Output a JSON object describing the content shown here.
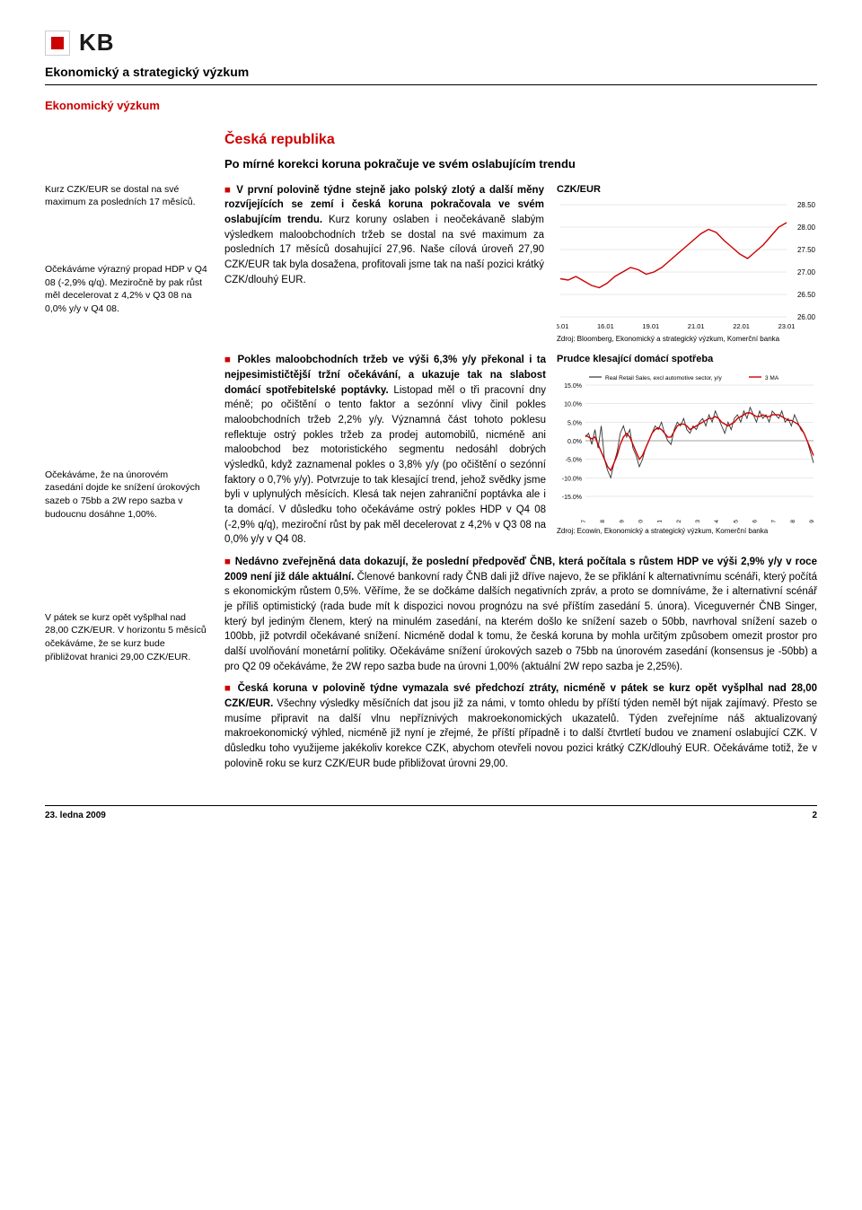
{
  "logo": {
    "text": "KB"
  },
  "header": {
    "title": "Ekonomický a strategický výzkum",
    "sub": "Ekonomický výzkum"
  },
  "country": "Česká republika",
  "headline": "Po mírné korekci koruna pokračuje ve svém oslabujícím trendu",
  "sidebar": {
    "p1": "Kurz CZK/EUR se dostal na své maximum za posledních 17 měsíců.",
    "p2": "Očekáváme výrazný propad HDP v Q4 08 (-2,9% q/q). Meziročně by pak růst měl decelerovat z 4,2% v Q3 08 na 0,0% y/y v Q4 08.",
    "p3": "Očekáváme, že na únorovém zasedání dojde ke snížení úrokových sazeb o 75bb a 2W repo sazba v budoucnu dosáhne 1,00%.",
    "p4": "V pátek se kurz opět vyšplhal nad 28,00 CZK/EUR. V horizontu 5 měsíců očekáváme, že se kurz bude přibližovat hranici 29,00 CZK/EUR."
  },
  "body": {
    "p1a": "V první polovině týdne stejně jako polský zlotý a další měny rozvíjejících se zemí i česká koruna pokračovala ve svém oslabujícím trendu.",
    "p1b": " Kurz koruny oslaben i neočekávaně slabým výsledkem maloobchodních tržeb se dostal na své maximum za posledních 17 měsíců dosahující 27,96. Naše cílová úroveň 27,90 CZK/EUR tak byla dosažena, profitovali jsme tak na naší pozici krátký CZK/dlouhý EUR.",
    "p2a": "Pokles maloobchodních tržeb ve výši 6,3% y/y překonal i ta nejpesimističtější tržní očekávání, a ukazuje tak na slabost domácí spotřebitelské poptávky.",
    "p2b": " Listopad měl o tři pracovní dny méně; po očištění o tento faktor a sezónní vlivy činil pokles maloobchodních tržeb 2,2% y/y. Významná část tohoto poklesu reflektuje ostrý pokles tržeb za prodej automobilů, nicméně ani maloobchod bez motoristického segmentu nedosáhl dobrých výsledků, když zaznamenal pokles o 3,8% y/y (po očištění o sezónní faktory o 0,7% y/y). Potvrzuje to tak klesající trend, jehož svědky jsme byli v uplynulých měsících. Klesá tak nejen zahraniční poptávka ale i ta domácí. V důsledku toho očekáváme ostrý pokles HDP v Q4 08 (-2,9% q/q), meziroční růst by pak měl decelerovat z 4,2% v Q3 08 na 0,0% y/y v Q4 08.",
    "p3a": "Nedávno zveřejněná data dokazují, že poslední předpověď ČNB, která počítala s růstem HDP ve výši 2,9% y/y v roce 2009 není již dále aktuální.",
    "p3b": " Členové bankovní rady ČNB dali již dříve najevo, že se přiklání k alternativnímu scénáři, který počítá s ekonomickým růstem 0,5%. Věříme, že se dočkáme dalších negativních zpráv, a proto se domníváme, že i alternativní scénář je příliš optimistický (rada bude mít k dispozici novou prognózu na své příštím zasedání 5. února). Viceguvernér ČNB Singer, který byl jediným členem, který na minulém zasedání, na kterém došlo ke snížení sazeb o 50bb, navrhoval snížení sazeb o 100bb, již potvrdil očekávané snížení. Nicméně dodal k tomu, že česká koruna by mohla určitým způsobem omezit prostor pro další uvolňování monetární politiky. Očekáváme snížení úrokových sazeb o 75bb na únorovém zasedání (konsensus je -50bb) a pro Q2 09 očekáváme, že 2W repo sazba bude na úrovni 1,00% (aktuální 2W repo sazba je 2,25%).",
    "p4a": "Česká koruna v polovině týdne vymazala své předchozí ztráty, nicméně v pátek se kurz opět vyšplhal nad 28,00 CZK/EUR.",
    "p4b": " Všechny výsledky měsíčních dat jsou již za námi, v tomto ohledu by příští týden neměl být nijak zajímavý. Přesto se musíme připravit na další vlnu nepříznivých makroekonomických ukazatelů. Týden zveřejníme náš aktualizovaný makroekonomický výhled, nicméně již nyní je zřejmé, že příští případně i to další čtvrtletí budou ve znamení oslabující CZK. V důsledku toho využijeme jakékoliv korekce CZK, abychom otevřeli novou pozici krátký CZK/dlouhý EUR. Očekáváme totiž, že v polovině roku se kurz CZK/EUR bude přibližovat úrovni 29,00."
  },
  "chart1": {
    "title": "CZK/EUR",
    "source": "Zdroj: Bloomberg, Ekonomický a strategický výzkum, Komerční banka",
    "ylim": [
      26.0,
      28.5
    ],
    "yticks": [
      "28.50",
      "28.00",
      "27.50",
      "27.00",
      "26.50",
      "26.00"
    ],
    "xticks": [
      "15.01",
      "16.01",
      "19.01",
      "21.01",
      "22.01",
      "23.01"
    ],
    "line_color": "#cc0000",
    "grid_color": "#d0d0d0",
    "background": "#ffffff",
    "series": [
      26.85,
      26.82,
      26.9,
      26.8,
      26.7,
      26.65,
      26.75,
      26.9,
      27.0,
      27.1,
      27.05,
      26.95,
      27.0,
      27.1,
      27.25,
      27.4,
      27.55,
      27.7,
      27.85,
      27.95,
      27.88,
      27.7,
      27.55,
      27.4,
      27.3,
      27.45,
      27.6,
      27.8,
      28.0,
      28.1
    ]
  },
  "chart2": {
    "title": "Prudce klesající domácí spotřeba",
    "source": "Zdroj: Ecowin, Ekonomický a strategický výzkum, Komerční banka",
    "legend": [
      "Real Retail Sales, excl automotive sector, y/y",
      "3 MA"
    ],
    "legend_colors": [
      "#333333",
      "#cc0000"
    ],
    "ylim": [
      -15,
      15
    ],
    "yticks": [
      "15.0%",
      "10.0%",
      "5.0%",
      "0.0%",
      "-5.0%",
      "-10.0%",
      "-15.0%"
    ],
    "xticks": [
      "Jan-97",
      "Jan-98",
      "Jan-99",
      "Jan-00",
      "Jan-01",
      "Jan-02",
      "Jan-03",
      "Jan-04",
      "Jan-05",
      "Jan-06",
      "Jan-07",
      "Jan-08",
      "Jan-09"
    ],
    "background": "#ffffff",
    "grid_color": "#d0d0d0",
    "series_raw": [
      1,
      2,
      -1,
      3,
      -2,
      4,
      -5,
      -8,
      -10,
      -6,
      -3,
      2,
      4,
      1,
      3,
      -2,
      -4,
      -7,
      -5,
      -2,
      0,
      2,
      4,
      3,
      5,
      2,
      0,
      -1,
      3,
      5,
      4,
      6,
      3,
      2,
      4,
      3,
      5,
      6,
      4,
      7,
      5,
      8,
      6,
      4,
      2,
      5,
      3,
      6,
      7,
      5,
      8,
      6,
      9,
      7,
      5,
      8,
      6,
      7,
      5,
      8,
      7,
      6,
      8,
      5,
      6,
      4,
      7,
      5,
      3,
      2,
      0,
      -3,
      -6
    ],
    "series_ma": [
      1.5,
      1.0,
      0.5,
      1.0,
      -1.0,
      -3.0,
      -5.0,
      -7.0,
      -8.0,
      -6.0,
      -4.0,
      -1.0,
      1.0,
      2.0,
      1.0,
      -1.0,
      -3.0,
      -5.0,
      -4.0,
      -2.0,
      0.0,
      2.0,
      3.0,
      3.5,
      3.0,
      2.0,
      1.0,
      1.0,
      2.5,
      4.0,
      4.5,
      4.5,
      4.0,
      3.0,
      3.5,
      4.0,
      4.5,
      5.0,
      5.5,
      6.0,
      6.0,
      6.5,
      6.0,
      5.0,
      4.5,
      4.0,
      4.5,
      5.0,
      6.0,
      6.5,
      7.0,
      7.5,
      7.5,
      7.0,
      6.5,
      6.5,
      7.0,
      6.5,
      6.5,
      7.0,
      7.0,
      7.0,
      6.5,
      6.0,
      5.5,
      5.5,
      5.0,
      4.5,
      3.5,
      2.0,
      0.0,
      -2.0,
      -4.0
    ]
  },
  "footer": {
    "date": "23. ledna 2009",
    "page": "2"
  }
}
